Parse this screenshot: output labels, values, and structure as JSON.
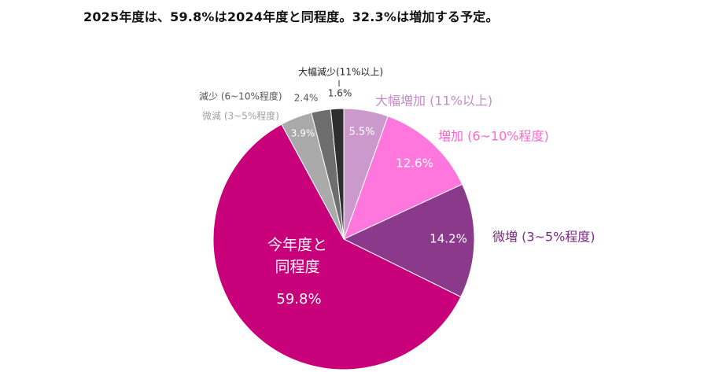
{
  "title": "2025年度は、59.8%は2024年度と同程度。32.3%は増加する予定。",
  "chart_data": {
    "type": "pie",
    "title": "2025年度は、59.8%は2024年度と同程度。32.3%は増加する予定。",
    "start_angle_deg": 0,
    "direction": "clockwise",
    "legend": "none",
    "slices": [
      {
        "name": "大幅増加 (11%以上)",
        "value": 5.5,
        "value_label": "5.5%",
        "color": "#cc99cc",
        "name_color": "#c48cc4"
      },
      {
        "name": "増加 (6~10%程度)",
        "value": 12.6,
        "value_label": "12.6%",
        "color": "#ff77dd",
        "name_color": "#ff66cc"
      },
      {
        "name": "微増 (3~5%程度)",
        "value": 14.2,
        "value_label": "14.2%",
        "color": "#8b3a8b",
        "name_color": "#7a2a80"
      },
      {
        "name": "今年度と同程度",
        "name_lines": [
          "今年度と",
          "同程度"
        ],
        "value": 59.8,
        "value_label": "59.8%",
        "color": "#c8007a",
        "name_color": "#ffffff"
      },
      {
        "name": "微減 (3~5%程度)",
        "value": 3.9,
        "value_label": "3.9%",
        "color": "#aaaaaa",
        "name_color": "#a0a0a0"
      },
      {
        "name": "減少 (6~10%程度)",
        "value": 2.4,
        "value_label": "2.4%",
        "color": "#6e6e6e",
        "name_color": "#555555"
      },
      {
        "name": "大幅減少(11%以上)",
        "value": 1.6,
        "value_label": "1.6%",
        "color": "#2e2e2e",
        "name_color": "#222222"
      }
    ]
  }
}
